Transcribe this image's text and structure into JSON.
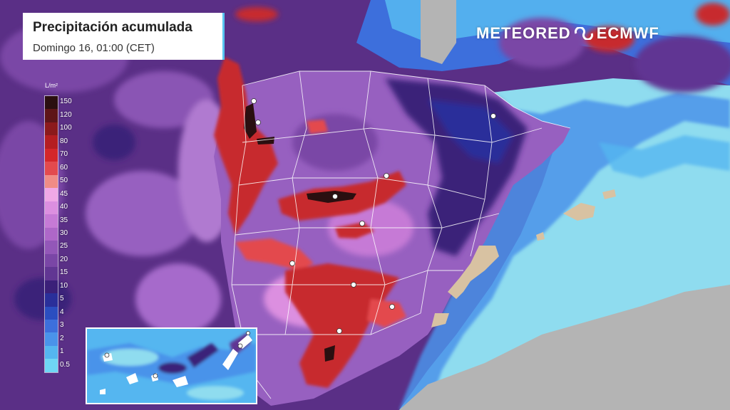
{
  "title": "Precipitación acumulada",
  "subtitle": "Domingo 16, 01:00 (CET)",
  "brand": {
    "meteored": "METEORED",
    "ecmwf": "ECMWF"
  },
  "legend": {
    "unit": "L/m²",
    "labels": [
      "150",
      "120",
      "100",
      "80",
      "70",
      "60",
      "50",
      "45",
      "40",
      "35",
      "30",
      "25",
      "20",
      "15",
      "10",
      "5",
      "4",
      "3",
      "2",
      "1",
      "0.5"
    ],
    "colors": [
      "#2a0f10",
      "#5e1518",
      "#8c1a1c",
      "#b51e22",
      "#d4272b",
      "#e34a4e",
      "#f08c86",
      "#f0a8e6",
      "#dc8fe0",
      "#c67ad6",
      "#ae67c8",
      "#9357b8",
      "#7a46a6",
      "#613693",
      "#3b2079",
      "#2a2f9a",
      "#2b4ec0",
      "#3d6fdc",
      "#4a93ea",
      "#55b6f0",
      "#6fd6f5"
    ]
  },
  "colors": {
    "sea_light": "#8fdcef",
    "land_gray": "#b4b4b4",
    "dry_land": "#d8c2a2",
    "purple_bg": "#5a2f86",
    "heavy_red": "#c72a2e"
  },
  "icons": [
    "city-dot",
    "logo-swirl-icon"
  ]
}
